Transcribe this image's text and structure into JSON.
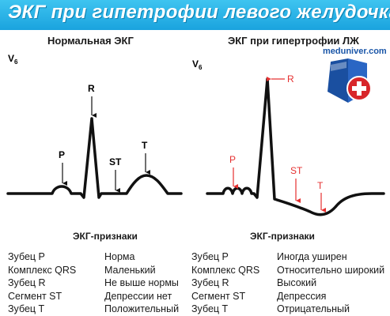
{
  "title": "ЭКГ при гипетрофии левого желудочка",
  "logo": {
    "text": "meduniver.com",
    "colors": {
      "shield_blue": "#1a4fa0",
      "shield_red": "#d8262a"
    }
  },
  "colors": {
    "header": "#1aa3de",
    "annotation": "#e53030",
    "trace": "#111111"
  },
  "normal": {
    "heading": "Нормальная ЭКГ",
    "lead": "V",
    "lead_sub": "6",
    "labels": {
      "P": "P",
      "R": "R",
      "ST": "ST",
      "T": "T"
    },
    "section_title": "ЭКГ-признаки",
    "rows": [
      {
        "feature": "Зубец P",
        "value": "Норма"
      },
      {
        "feature": "Комплекс QRS",
        "value": "Маленький"
      },
      {
        "feature": "Зубец R",
        "value": "Не выше нормы"
      },
      {
        "feature": "Сегмент ST",
        "value": "Депрессии нет"
      },
      {
        "feature": "Зубец T",
        "value": "Положительный"
      }
    ]
  },
  "lvh": {
    "heading": "ЭКГ при гипертрофии ЛЖ",
    "lead": "V",
    "lead_sub": "6",
    "labels": {
      "P": "P",
      "R": "R",
      "ST": "ST",
      "T": "T"
    },
    "section_title": "ЭКГ-признаки",
    "rows": [
      {
        "feature": "Зубец P",
        "value": "Иногда уширен"
      },
      {
        "feature": "Комплекс QRS",
        "value": "Относительно широкий"
      },
      {
        "feature": "Зубец R",
        "value": "Высокий"
      },
      {
        "feature": "Сегмент ST",
        "value": "Депрессия"
      },
      {
        "feature": "Зубец T",
        "value": "Отрицательный"
      }
    ]
  }
}
